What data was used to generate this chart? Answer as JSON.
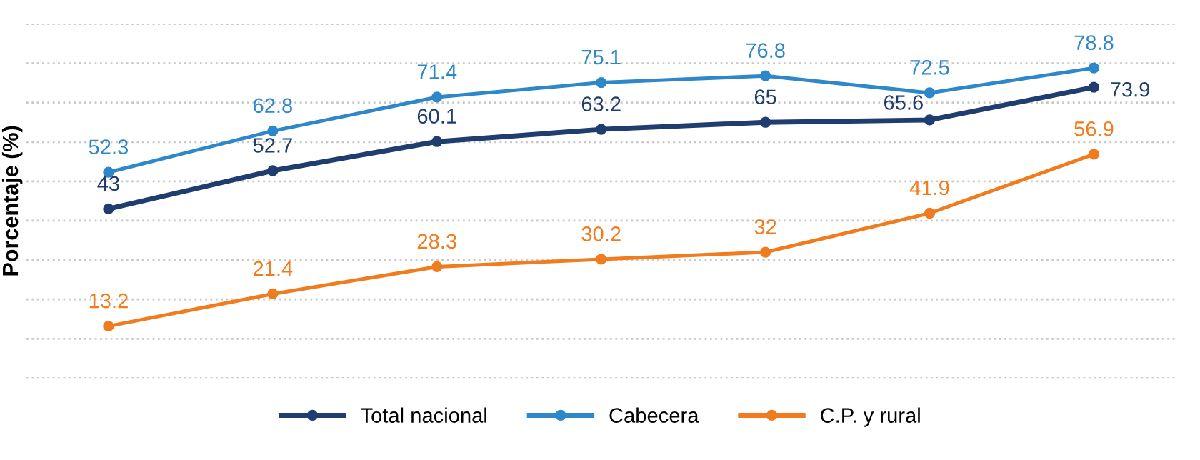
{
  "chart_data": {
    "type": "line",
    "ylabel": "Porcentaje (%)",
    "categories": [
      null,
      null,
      null,
      null,
      null,
      null,
      null
    ],
    "series": [
      {
        "name": "Total nacional",
        "color": "#1f3d6e",
        "values": [
          43,
          52.7,
          60.1,
          63.2,
          65,
          65.6,
          73.9
        ]
      },
      {
        "name": "Cabecera",
        "color": "#2e87c8",
        "values": [
          52.3,
          62.8,
          71.4,
          75.1,
          76.8,
          72.5,
          78.8
        ]
      },
      {
        "name": "C.P. y rural",
        "color": "#f07c1e",
        "values": [
          13.2,
          21.4,
          28.3,
          30.2,
          32,
          41.9,
          56.9
        ]
      }
    ],
    "ylim": [
      0,
      90
    ],
    "tick_labels": false,
    "grid": "y",
    "legend": "bottom",
    "marker": "circle",
    "line_style": "solid",
    "data_labels": true
  }
}
